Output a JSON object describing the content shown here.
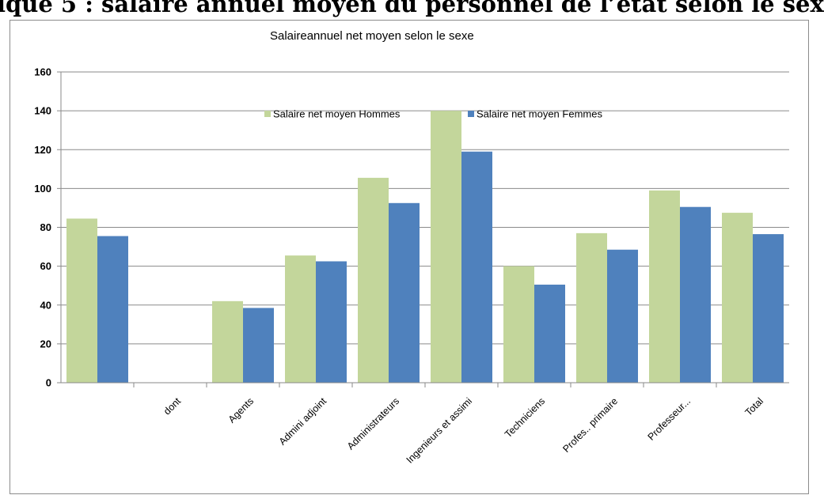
{
  "document": {
    "heading": "ique 5 : salaire annuel moyen du personnel de l’état selon le sex"
  },
  "chart_data": {
    "type": "bar",
    "title": "Salaireannuel net moyen selon le sexe",
    "xlabel": "",
    "ylabel": "",
    "ylim": [
      0,
      160
    ],
    "yticks": [
      0,
      20,
      40,
      60,
      80,
      100,
      120,
      140,
      160
    ],
    "grid": true,
    "legend_position": "top-center",
    "categories": [
      "",
      "dont",
      "Agents",
      "Admini adjoint",
      "Administrateurs",
      "Ingenieurs et assimi",
      "Techniciens",
      "Profes.. primaire",
      "Professeur...",
      "Total"
    ],
    "series": [
      {
        "name": "Salaire net moyen  Hommes",
        "color": "#c3d69b",
        "values": [
          84.5,
          null,
          42,
          65.5,
          105.5,
          140,
          60,
          77,
          99,
          87.5
        ]
      },
      {
        "name": "Salaire net moyen  Femmes",
        "color": "#4f81bd",
        "values": [
          75.5,
          null,
          38.5,
          62.5,
          92.5,
          119,
          50.5,
          68.5,
          90.5,
          76.5
        ]
      }
    ]
  }
}
